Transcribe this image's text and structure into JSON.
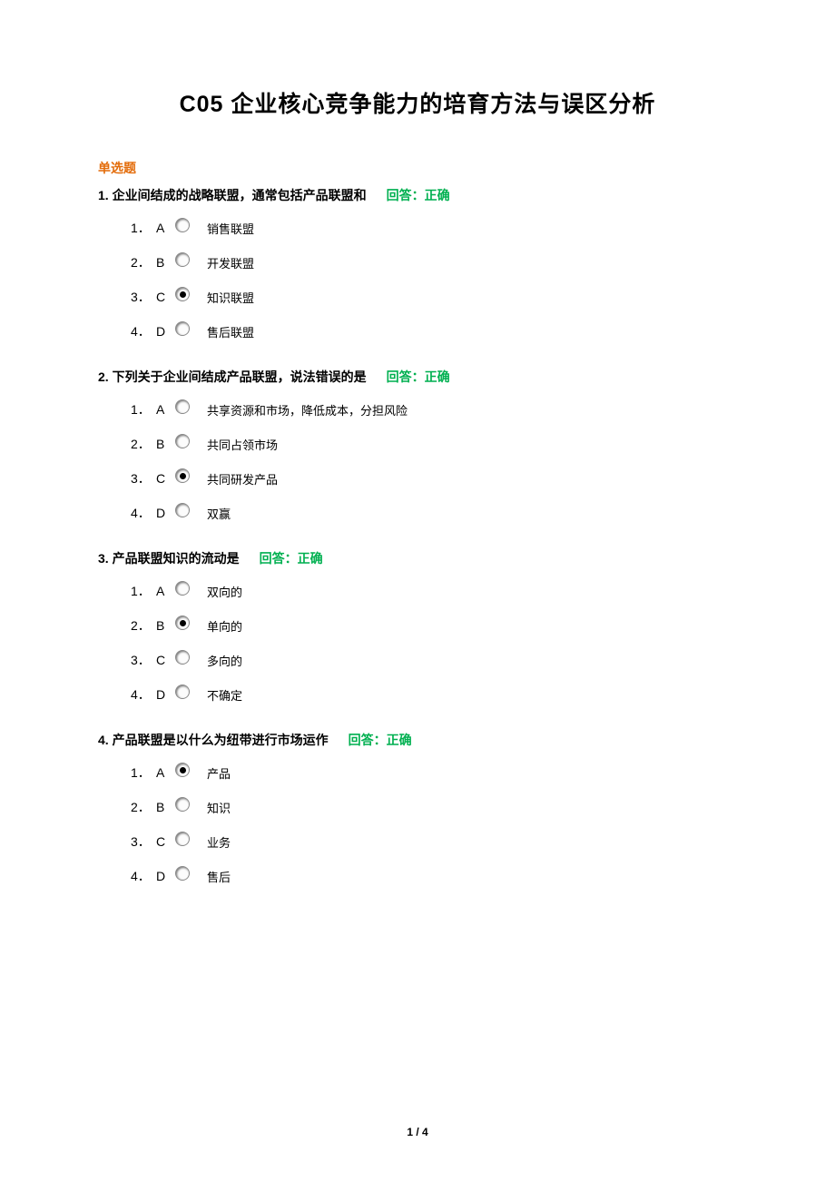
{
  "title": "C05  企业核心竞争能力的培育方法与误区分析",
  "section_heading": "单选题",
  "feedback_label": "回答：正确",
  "colors": {
    "section_heading": "#e36c0a",
    "feedback": "#00b050",
    "text": "#000000",
    "background": "#ffffff"
  },
  "questions": [
    {
      "number": "1.",
      "text": "企业间结成的战略联盟，通常包括产品联盟和",
      "selected_index": 2,
      "options": [
        {
          "idx": "1．",
          "letter": "A",
          "text": "销售联盟"
        },
        {
          "idx": "2．",
          "letter": "B",
          "text": "开发联盟"
        },
        {
          "idx": "3．",
          "letter": "C",
          "text": "知识联盟"
        },
        {
          "idx": "4．",
          "letter": "D",
          "text": "售后联盟"
        }
      ]
    },
    {
      "number": "2.",
      "text": "下列关于企业间结成产品联盟，说法错误的是",
      "selected_index": 2,
      "options": [
        {
          "idx": "1．",
          "letter": "A",
          "text": "共享资源和市场，降低成本，分担风险"
        },
        {
          "idx": "2．",
          "letter": "B",
          "text": "共同占领市场"
        },
        {
          "idx": "3．",
          "letter": "C",
          "text": "共同研发产品"
        },
        {
          "idx": "4．",
          "letter": "D",
          "text": "双赢"
        }
      ]
    },
    {
      "number": "3.",
      "text": "产品联盟知识的流动是",
      "selected_index": 1,
      "options": [
        {
          "idx": "1．",
          "letter": "A",
          "text": "双向的"
        },
        {
          "idx": "2．",
          "letter": "B",
          "text": "单向的"
        },
        {
          "idx": "3．",
          "letter": "C",
          "text": "多向的"
        },
        {
          "idx": "4．",
          "letter": "D",
          "text": "不确定"
        }
      ]
    },
    {
      "number": "4.",
      "text": "产品联盟是以什么为纽带进行市场运作",
      "selected_index": 0,
      "options": [
        {
          "idx": "1．",
          "letter": "A",
          "text": "产品"
        },
        {
          "idx": "2．",
          "letter": "B",
          "text": "知识"
        },
        {
          "idx": "3．",
          "letter": "C",
          "text": "业务"
        },
        {
          "idx": "4．",
          "letter": "D",
          "text": "售后"
        }
      ]
    }
  ],
  "page_indicator": "1 / 4"
}
